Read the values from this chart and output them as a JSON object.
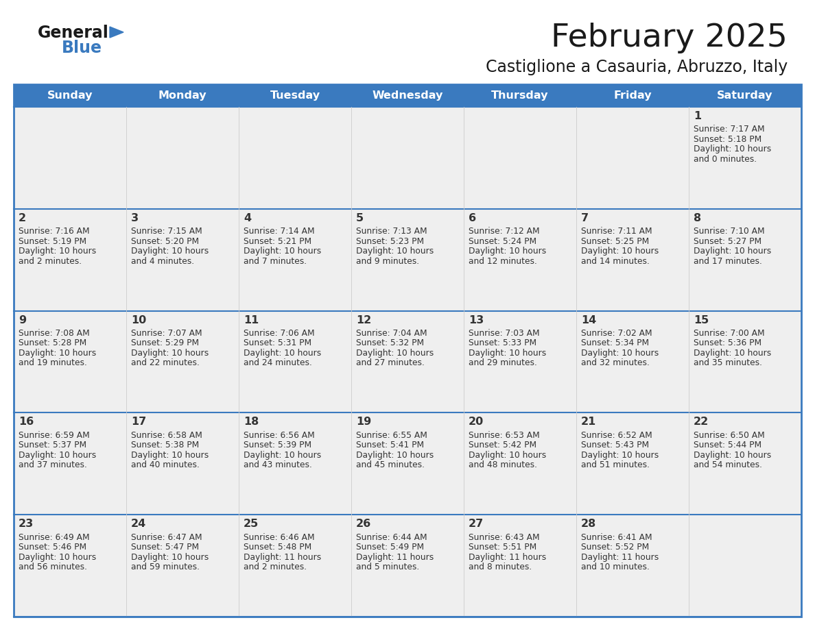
{
  "title": "February 2025",
  "subtitle": "Castiglione a Casauria, Abruzzo, Italy",
  "header_bg": "#3a7abf",
  "header_text": "#ffffff",
  "cell_bg": "#efefef",
  "row_separator_color": "#3a7abf",
  "col_separator_color": "#cccccc",
  "outer_border_color": "#3a7abf",
  "day_names": [
    "Sunday",
    "Monday",
    "Tuesday",
    "Wednesday",
    "Thursday",
    "Friday",
    "Saturday"
  ],
  "logo_general_color": "#1a1a1a",
  "logo_blue_color": "#3a7abf",
  "title_color": "#1a1a1a",
  "subtitle_color": "#1a1a1a",
  "day_num_color": "#333333",
  "cell_text_color": "#333333",
  "days": [
    {
      "day": 1,
      "col": 6,
      "row": 0,
      "sunrise": "7:17 AM",
      "sunset": "5:18 PM",
      "daylight_hours": 10,
      "daylight_minutes": 0
    },
    {
      "day": 2,
      "col": 0,
      "row": 1,
      "sunrise": "7:16 AM",
      "sunset": "5:19 PM",
      "daylight_hours": 10,
      "daylight_minutes": 2
    },
    {
      "day": 3,
      "col": 1,
      "row": 1,
      "sunrise": "7:15 AM",
      "sunset": "5:20 PM",
      "daylight_hours": 10,
      "daylight_minutes": 4
    },
    {
      "day": 4,
      "col": 2,
      "row": 1,
      "sunrise": "7:14 AM",
      "sunset": "5:21 PM",
      "daylight_hours": 10,
      "daylight_minutes": 7
    },
    {
      "day": 5,
      "col": 3,
      "row": 1,
      "sunrise": "7:13 AM",
      "sunset": "5:23 PM",
      "daylight_hours": 10,
      "daylight_minutes": 9
    },
    {
      "day": 6,
      "col": 4,
      "row": 1,
      "sunrise": "7:12 AM",
      "sunset": "5:24 PM",
      "daylight_hours": 10,
      "daylight_minutes": 12
    },
    {
      "day": 7,
      "col": 5,
      "row": 1,
      "sunrise": "7:11 AM",
      "sunset": "5:25 PM",
      "daylight_hours": 10,
      "daylight_minutes": 14
    },
    {
      "day": 8,
      "col": 6,
      "row": 1,
      "sunrise": "7:10 AM",
      "sunset": "5:27 PM",
      "daylight_hours": 10,
      "daylight_minutes": 17
    },
    {
      "day": 9,
      "col": 0,
      "row": 2,
      "sunrise": "7:08 AM",
      "sunset": "5:28 PM",
      "daylight_hours": 10,
      "daylight_minutes": 19
    },
    {
      "day": 10,
      "col": 1,
      "row": 2,
      "sunrise": "7:07 AM",
      "sunset": "5:29 PM",
      "daylight_hours": 10,
      "daylight_minutes": 22
    },
    {
      "day": 11,
      "col": 2,
      "row": 2,
      "sunrise": "7:06 AM",
      "sunset": "5:31 PM",
      "daylight_hours": 10,
      "daylight_minutes": 24
    },
    {
      "day": 12,
      "col": 3,
      "row": 2,
      "sunrise": "7:04 AM",
      "sunset": "5:32 PM",
      "daylight_hours": 10,
      "daylight_minutes": 27
    },
    {
      "day": 13,
      "col": 4,
      "row": 2,
      "sunrise": "7:03 AM",
      "sunset": "5:33 PM",
      "daylight_hours": 10,
      "daylight_minutes": 29
    },
    {
      "day": 14,
      "col": 5,
      "row": 2,
      "sunrise": "7:02 AM",
      "sunset": "5:34 PM",
      "daylight_hours": 10,
      "daylight_minutes": 32
    },
    {
      "day": 15,
      "col": 6,
      "row": 2,
      "sunrise": "7:00 AM",
      "sunset": "5:36 PM",
      "daylight_hours": 10,
      "daylight_minutes": 35
    },
    {
      "day": 16,
      "col": 0,
      "row": 3,
      "sunrise": "6:59 AM",
      "sunset": "5:37 PM",
      "daylight_hours": 10,
      "daylight_minutes": 37
    },
    {
      "day": 17,
      "col": 1,
      "row": 3,
      "sunrise": "6:58 AM",
      "sunset": "5:38 PM",
      "daylight_hours": 10,
      "daylight_minutes": 40
    },
    {
      "day": 18,
      "col": 2,
      "row": 3,
      "sunrise": "6:56 AM",
      "sunset": "5:39 PM",
      "daylight_hours": 10,
      "daylight_minutes": 43
    },
    {
      "day": 19,
      "col": 3,
      "row": 3,
      "sunrise": "6:55 AM",
      "sunset": "5:41 PM",
      "daylight_hours": 10,
      "daylight_minutes": 45
    },
    {
      "day": 20,
      "col": 4,
      "row": 3,
      "sunrise": "6:53 AM",
      "sunset": "5:42 PM",
      "daylight_hours": 10,
      "daylight_minutes": 48
    },
    {
      "day": 21,
      "col": 5,
      "row": 3,
      "sunrise": "6:52 AM",
      "sunset": "5:43 PM",
      "daylight_hours": 10,
      "daylight_minutes": 51
    },
    {
      "day": 22,
      "col": 6,
      "row": 3,
      "sunrise": "6:50 AM",
      "sunset": "5:44 PM",
      "daylight_hours": 10,
      "daylight_minutes": 54
    },
    {
      "day": 23,
      "col": 0,
      "row": 4,
      "sunrise": "6:49 AM",
      "sunset": "5:46 PM",
      "daylight_hours": 10,
      "daylight_minutes": 56
    },
    {
      "day": 24,
      "col": 1,
      "row": 4,
      "sunrise": "6:47 AM",
      "sunset": "5:47 PM",
      "daylight_hours": 10,
      "daylight_minutes": 59
    },
    {
      "day": 25,
      "col": 2,
      "row": 4,
      "sunrise": "6:46 AM",
      "sunset": "5:48 PM",
      "daylight_hours": 11,
      "daylight_minutes": 2
    },
    {
      "day": 26,
      "col": 3,
      "row": 4,
      "sunrise": "6:44 AM",
      "sunset": "5:49 PM",
      "daylight_hours": 11,
      "daylight_minutes": 5
    },
    {
      "day": 27,
      "col": 4,
      "row": 4,
      "sunrise": "6:43 AM",
      "sunset": "5:51 PM",
      "daylight_hours": 11,
      "daylight_minutes": 8
    },
    {
      "day": 28,
      "col": 5,
      "row": 4,
      "sunrise": "6:41 AM",
      "sunset": "5:52 PM",
      "daylight_hours": 11,
      "daylight_minutes": 10
    }
  ]
}
